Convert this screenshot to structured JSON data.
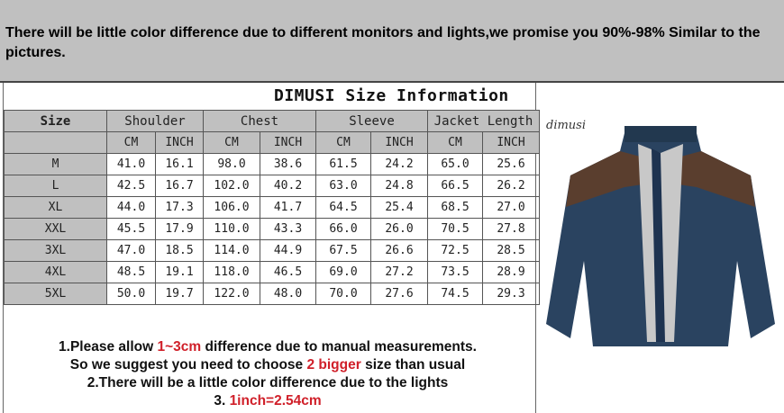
{
  "banner": {
    "text": "There will be little color difference due to different monitors and lights,we promise you 90%-98%  Similar to the pictures."
  },
  "title": "DIMUSI  Size Information",
  "table": {
    "size_header": "Size",
    "groups": [
      "Shoulder",
      "Chest",
      "Sleeve",
      "Jacket Length"
    ],
    "units": [
      "CM",
      "INCH",
      "CM",
      "INCH",
      "CM",
      "INCH",
      "CM",
      "INCH"
    ],
    "rows": [
      [
        "M",
        "41.0",
        "16.1",
        "98.0",
        "38.6",
        "61.5",
        "24.2",
        "65.0",
        "25.6"
      ],
      [
        "L",
        "42.5",
        "16.7",
        "102.0",
        "40.2",
        "63.0",
        "24.8",
        "66.5",
        "26.2"
      ],
      [
        "XL",
        "44.0",
        "17.3",
        "106.0",
        "41.7",
        "64.5",
        "25.4",
        "68.5",
        "27.0"
      ],
      [
        "XXL",
        "45.5",
        "17.9",
        "110.0",
        "43.3",
        "66.0",
        "26.0",
        "70.5",
        "27.8"
      ],
      [
        "3XL",
        "47.0",
        "18.5",
        "114.0",
        "44.9",
        "67.5",
        "26.6",
        "72.5",
        "28.5"
      ],
      [
        "4XL",
        "48.5",
        "19.1",
        "118.0",
        "46.5",
        "69.0",
        "27.2",
        "73.5",
        "28.9"
      ],
      [
        "5XL",
        "50.0",
        "19.7",
        "122.0",
        "48.0",
        "70.0",
        "27.6",
        "74.5",
        "29.3"
      ]
    ]
  },
  "notes": {
    "n1a": "1.Please allow ",
    "n1b": "1~3cm",
    "n1c": " difference due to manual measurements.",
    "n2a": "So we suggest you need to choose ",
    "n2b": "2 bigger",
    "n2c": " size than usual",
    "n3": "2.There will be a little color difference due to the lights",
    "n4a": "3. ",
    "n4b": "1inch=2.54cm"
  },
  "product": {
    "brand": "dimusi",
    "colors": {
      "body": "#2a4360",
      "yoke": "#5a3e2e",
      "lining": "#c8c8c8"
    }
  },
  "accent_color": "#d0202a"
}
